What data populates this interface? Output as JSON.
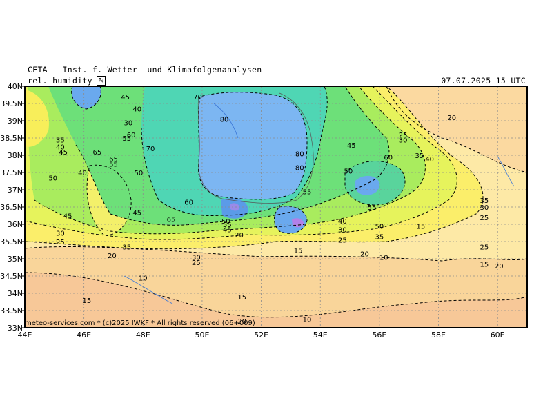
{
  "header": {
    "title": "CETA — Inst. f. Wetter— und Klimafolgenanalysen —",
    "variable": "rel. humidity",
    "unit": "%",
    "datetime": "07.07.2025 15 UTC"
  },
  "credit": "meteo-services.com * (c)2025 IWKF * All rights reserved (06+009)",
  "map": {
    "lat_labels": [
      "40N",
      "39.5N",
      "39N",
      "38.5N",
      "38N",
      "37.5N",
      "37N",
      "36.5N",
      "36N",
      "35.5N",
      "35N",
      "34.5N",
      "34N",
      "33.5N",
      "33N"
    ],
    "lon_labels": [
      "44E",
      "46E",
      "48E",
      "50E",
      "52E",
      "54E",
      "56E",
      "58E",
      "60E"
    ],
    "contour_labels": [
      {
        "text": "70",
        "lon": 49.85,
        "lat": 39.7
      },
      {
        "text": "40",
        "lon": 47.8,
        "lat": 39.35
      },
      {
        "text": "45",
        "lon": 47.4,
        "lat": 39.7
      },
      {
        "text": "30",
        "lon": 47.5,
        "lat": 38.95
      },
      {
        "text": "60",
        "lon": 47.6,
        "lat": 38.6
      },
      {
        "text": "55",
        "lon": 47.45,
        "lat": 38.5
      },
      {
        "text": "70",
        "lon": 48.25,
        "lat": 38.2
      },
      {
        "text": "65",
        "lon": 46.45,
        "lat": 38.1
      },
      {
        "text": "35",
        "lon": 45.2,
        "lat": 38.45
      },
      {
        "text": "40",
        "lon": 45.2,
        "lat": 38.25
      },
      {
        "text": "45",
        "lon": 45.3,
        "lat": 38.1
      },
      {
        "text": "65",
        "lon": 47.0,
        "lat": 37.9
      },
      {
        "text": "55",
        "lon": 47.0,
        "lat": 37.75
      },
      {
        "text": "50",
        "lon": 47.85,
        "lat": 37.5
      },
      {
        "text": "40",
        "lon": 45.95,
        "lat": 37.5
      },
      {
        "text": "50",
        "lon": 44.95,
        "lat": 37.35
      },
      {
        "text": "80",
        "lon": 50.75,
        "lat": 39.05
      },
      {
        "text": "80",
        "lon": 53.3,
        "lat": 38.05
      },
      {
        "text": "80",
        "lon": 53.3,
        "lat": 37.65
      },
      {
        "text": "60",
        "lon": 49.55,
        "lat": 36.65
      },
      {
        "text": "45",
        "lon": 47.8,
        "lat": 36.35
      },
      {
        "text": "45",
        "lon": 45.45,
        "lat": 36.25
      },
      {
        "text": "65",
        "lon": 48.95,
        "lat": 36.15
      },
      {
        "text": "30",
        "lon": 45.2,
        "lat": 35.75
      },
      {
        "text": "25",
        "lon": 45.2,
        "lat": 35.5
      },
      {
        "text": "35",
        "lon": 47.45,
        "lat": 35.35
      },
      {
        "text": "20",
        "lon": 46.95,
        "lat": 35.1
      },
      {
        "text": "20",
        "lon": 51.25,
        "lat": 35.7
      },
      {
        "text": "30",
        "lon": 49.8,
        "lat": 35.05
      },
      {
        "text": "25",
        "lon": 49.8,
        "lat": 34.9
      },
      {
        "text": "10",
        "lon": 48.0,
        "lat": 34.45
      },
      {
        "text": "15",
        "lon": 46.1,
        "lat": 33.8
      },
      {
        "text": "15",
        "lon": 51.35,
        "lat": 33.9
      },
      {
        "text": "20",
        "lon": 51.35,
        "lat": 33.2
      },
      {
        "text": "10",
        "lon": 53.55,
        "lat": 33.25
      },
      {
        "text": "15",
        "lon": 53.25,
        "lat": 35.25
      },
      {
        "text": "45",
        "lon": 55.05,
        "lat": 38.3
      },
      {
        "text": "25",
        "lon": 56.8,
        "lat": 38.6
      },
      {
        "text": "30",
        "lon": 56.8,
        "lat": 38.45
      },
      {
        "text": "60",
        "lon": 56.3,
        "lat": 37.95
      },
      {
        "text": "35",
        "lon": 57.35,
        "lat": 38.0
      },
      {
        "text": "40",
        "lon": 57.7,
        "lat": 37.9
      },
      {
        "text": "50",
        "lon": 54.95,
        "lat": 37.55
      },
      {
        "text": "20",
        "lon": 58.45,
        "lat": 39.1
      },
      {
        "text": "55",
        "lon": 53.55,
        "lat": 36.95
      },
      {
        "text": "55",
        "lon": 55.75,
        "lat": 36.5
      },
      {
        "text": "40",
        "lon": 54.75,
        "lat": 36.1
      },
      {
        "text": "30",
        "lon": 54.75,
        "lat": 35.85
      },
      {
        "text": "25",
        "lon": 54.75,
        "lat": 35.55
      },
      {
        "text": "20",
        "lon": 55.5,
        "lat": 35.15
      },
      {
        "text": "10",
        "lon": 56.15,
        "lat": 35.05
      },
      {
        "text": "15",
        "lon": 57.4,
        "lat": 35.95
      },
      {
        "text": "35",
        "lon": 59.55,
        "lat": 36.7
      },
      {
        "text": "30",
        "lon": 59.55,
        "lat": 36.5
      },
      {
        "text": "25",
        "lon": 59.55,
        "lat": 36.2
      },
      {
        "text": "25",
        "lon": 59.55,
        "lat": 35.35
      },
      {
        "text": "15",
        "lon": 59.55,
        "lat": 34.85
      },
      {
        "text": "20",
        "lon": 60.05,
        "lat": 34.8
      },
      {
        "text": "50",
        "lon": 56.0,
        "lat": 35.95
      },
      {
        "text": "35",
        "lon": 56.0,
        "lat": 35.65
      },
      {
        "text": "50",
        "lon": 50.8,
        "lat": 36.1
      },
      {
        "text": "55",
        "lon": 50.85,
        "lat": 36.0
      },
      {
        "text": "45",
        "lon": 50.85,
        "lat": 35.85
      }
    ]
  },
  "colors": {
    "frame": "#000000",
    "grid": "#8c8c8c",
    "contour": "#000000",
    "rivers": "#3c78d8"
  }
}
